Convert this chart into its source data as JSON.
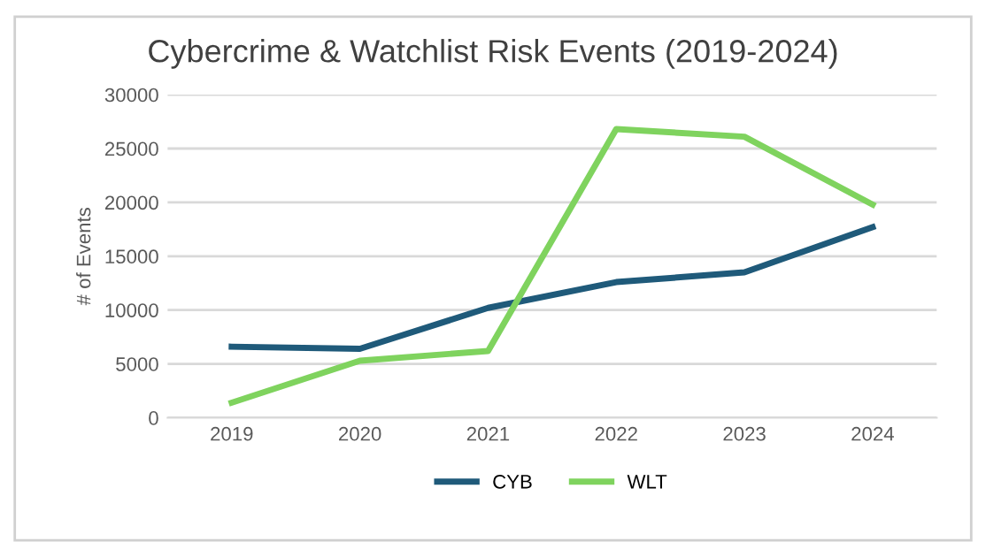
{
  "chart_data": {
    "type": "line",
    "title": "Cybercrime & Watchlist Risk Events (2019-2024)",
    "ylabel": "# of Events",
    "categories": [
      "2019",
      "2020",
      "2021",
      "2022",
      "2023",
      "2024"
    ],
    "series": [
      {
        "name": "CYB",
        "color": "#1f5a7a",
        "values": [
          6600,
          6400,
          10200,
          12600,
          13500,
          17700
        ]
      },
      {
        "name": "WLT",
        "color": "#7fd35e",
        "values": [
          1400,
          5300,
          6200,
          26800,
          26100,
          19800
        ]
      }
    ],
    "ylim": [
      0,
      30000
    ],
    "yticks": [
      0,
      5000,
      10000,
      15000,
      20000,
      25000,
      30000
    ],
    "grid": "y",
    "legend": "bottom",
    "marker": "none",
    "line_style": "solid"
  }
}
